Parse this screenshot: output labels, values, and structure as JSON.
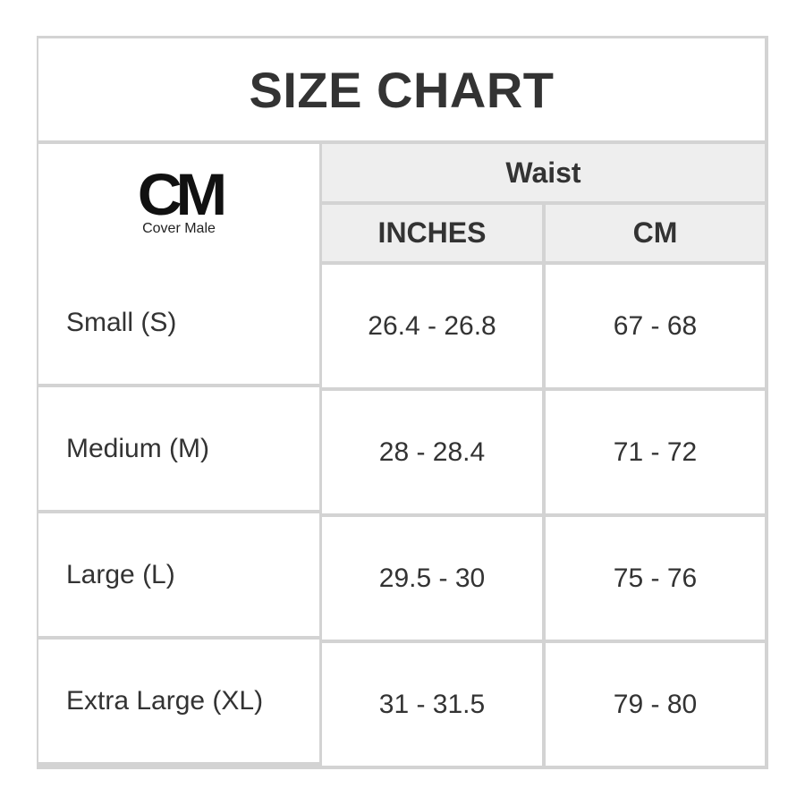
{
  "title": "SIZE CHART",
  "logo": {
    "mark": "CM",
    "name": "Cover Male"
  },
  "table": {
    "group_header": "Waist",
    "columns": [
      "INCHES",
      "CM"
    ],
    "rows": [
      [
        "Small (S)",
        "26.4 - 26.8",
        "67 - 68"
      ],
      [
        "Medium (M)",
        "28 - 28.4",
        "71 - 72"
      ],
      [
        "Large (L)",
        "29.5 - 30",
        "75 - 76"
      ],
      [
        "Extra Large (XL)",
        "31 - 31.5",
        "79 - 80"
      ]
    ]
  }
}
